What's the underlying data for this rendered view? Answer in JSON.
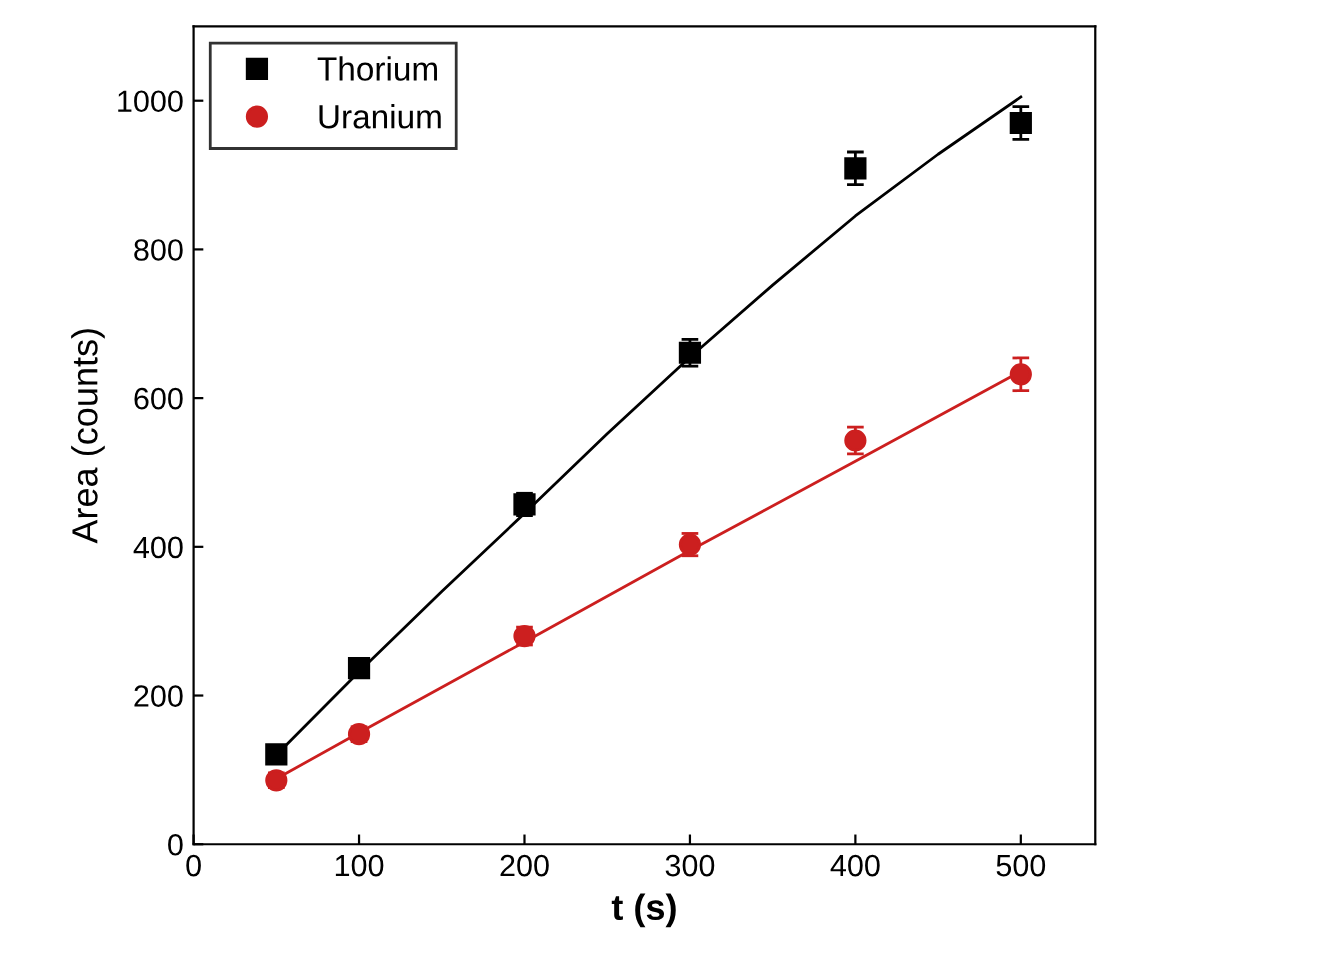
{
  "chart_data": {
    "type": "scatter",
    "xlabel": "t (s)",
    "ylabel": "Area (counts)",
    "x": [
      50,
      100,
      200,
      300,
      400,
      500
    ],
    "series": [
      {
        "name": "Thorium",
        "color": "#000000",
        "marker": "square",
        "values": [
          121,
          237,
          457,
          661,
          909,
          970
        ],
        "errors": [
          12,
          12,
          15,
          18,
          22,
          22
        ]
      },
      {
        "name": "Uranium",
        "color": "#cc1f1f",
        "marker": "circle",
        "values": [
          86,
          148,
          280,
          403,
          543,
          632
        ],
        "errors": [
          10,
          10,
          12,
          15,
          18,
          22
        ]
      },
      {
        "type": "line",
        "color": "#000000",
        "line_style": "solid",
        "x": [
          50,
          100,
          150,
          200,
          250,
          300,
          350,
          400,
          450,
          500
        ],
        "values": [
          120,
          232,
          340,
          445,
          552,
          655,
          752,
          845,
          928,
          1005
        ]
      },
      {
        "type": "line",
        "color": "#cc1f1f",
        "line_style": "solid",
        "x": [
          50,
          100,
          200,
          300,
          400,
          500
        ],
        "values": [
          88,
          150,
          272,
          395,
          515,
          636
        ]
      }
    ],
    "xlim": [
      0,
      545
    ],
    "ylim": [
      0,
      1100
    ],
    "xticks": [
      0,
      100,
      200,
      300,
      400,
      500
    ],
    "yticks": [
      0,
      200,
      400,
      600,
      800,
      1000
    ],
    "grid": false,
    "legend": "top left"
  }
}
